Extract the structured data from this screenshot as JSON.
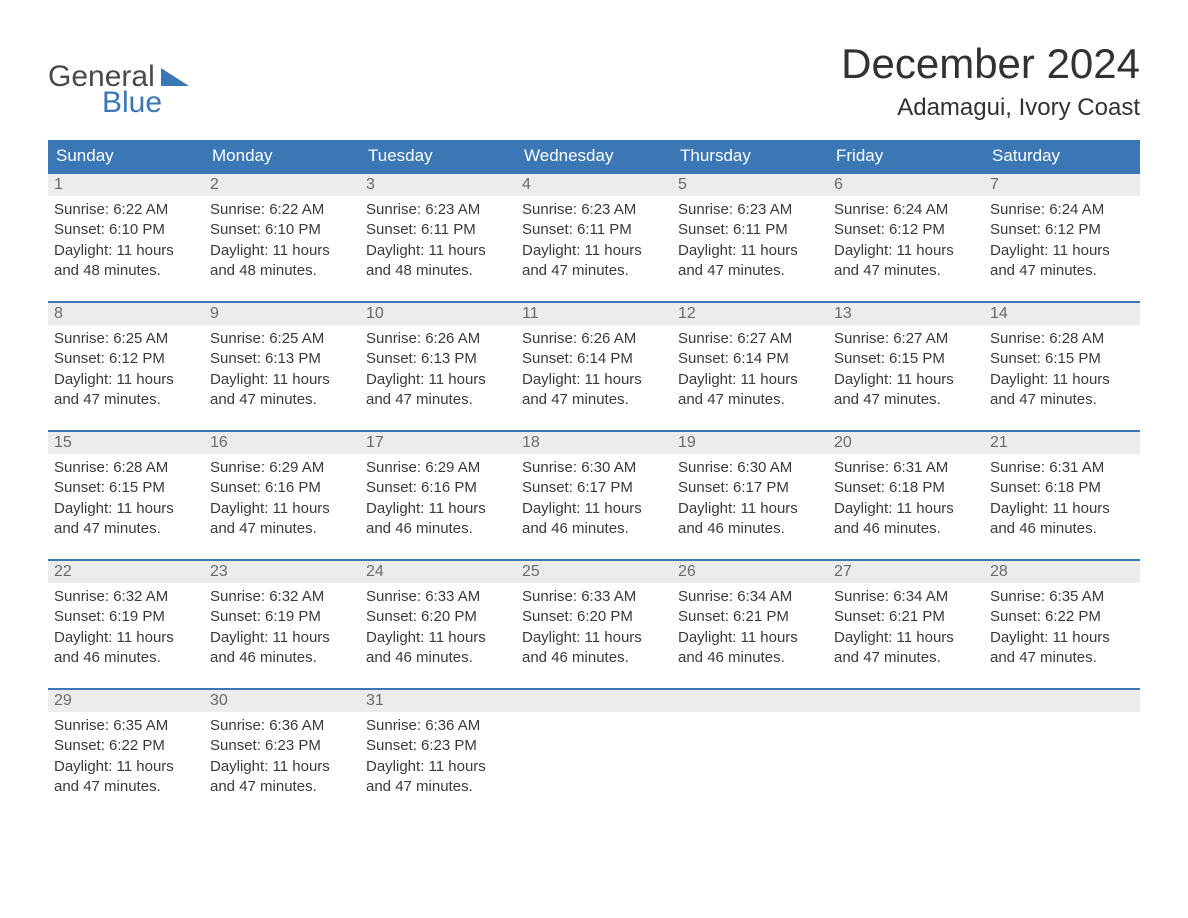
{
  "logo": {
    "word1": "General",
    "word2": "Blue"
  },
  "header": {
    "month_title": "December 2024",
    "location": "Adamagui, Ivory Coast"
  },
  "colors": {
    "brand_blue": "#3b76b5",
    "header_bg": "#3b76b5",
    "header_text": "#ffffff",
    "daynum_bg": "#ececec",
    "daynum_text": "#6a6a6a",
    "body_text": "#3a3a3a",
    "rule": "#3b76b5",
    "page_bg": "#ffffff"
  },
  "typography": {
    "month_title_fontsize": 42,
    "location_fontsize": 24,
    "weekday_fontsize": 17,
    "daynum_fontsize": 16,
    "body_fontsize": 15,
    "logo_fontsize": 30
  },
  "weekdays": [
    "Sunday",
    "Monday",
    "Tuesday",
    "Wednesday",
    "Thursday",
    "Friday",
    "Saturday"
  ],
  "weeks": [
    [
      {
        "n": "1",
        "sr": "Sunrise: 6:22 AM",
        "ss": "Sunset: 6:10 PM",
        "d1": "Daylight: 11 hours",
        "d2": "and 48 minutes."
      },
      {
        "n": "2",
        "sr": "Sunrise: 6:22 AM",
        "ss": "Sunset: 6:10 PM",
        "d1": "Daylight: 11 hours",
        "d2": "and 48 minutes."
      },
      {
        "n": "3",
        "sr": "Sunrise: 6:23 AM",
        "ss": "Sunset: 6:11 PM",
        "d1": "Daylight: 11 hours",
        "d2": "and 48 minutes."
      },
      {
        "n": "4",
        "sr": "Sunrise: 6:23 AM",
        "ss": "Sunset: 6:11 PM",
        "d1": "Daylight: 11 hours",
        "d2": "and 47 minutes."
      },
      {
        "n": "5",
        "sr": "Sunrise: 6:23 AM",
        "ss": "Sunset: 6:11 PM",
        "d1": "Daylight: 11 hours",
        "d2": "and 47 minutes."
      },
      {
        "n": "6",
        "sr": "Sunrise: 6:24 AM",
        "ss": "Sunset: 6:12 PM",
        "d1": "Daylight: 11 hours",
        "d2": "and 47 minutes."
      },
      {
        "n": "7",
        "sr": "Sunrise: 6:24 AM",
        "ss": "Sunset: 6:12 PM",
        "d1": "Daylight: 11 hours",
        "d2": "and 47 minutes."
      }
    ],
    [
      {
        "n": "8",
        "sr": "Sunrise: 6:25 AM",
        "ss": "Sunset: 6:12 PM",
        "d1": "Daylight: 11 hours",
        "d2": "and 47 minutes."
      },
      {
        "n": "9",
        "sr": "Sunrise: 6:25 AM",
        "ss": "Sunset: 6:13 PM",
        "d1": "Daylight: 11 hours",
        "d2": "and 47 minutes."
      },
      {
        "n": "10",
        "sr": "Sunrise: 6:26 AM",
        "ss": "Sunset: 6:13 PM",
        "d1": "Daylight: 11 hours",
        "d2": "and 47 minutes."
      },
      {
        "n": "11",
        "sr": "Sunrise: 6:26 AM",
        "ss": "Sunset: 6:14 PM",
        "d1": "Daylight: 11 hours",
        "d2": "and 47 minutes."
      },
      {
        "n": "12",
        "sr": "Sunrise: 6:27 AM",
        "ss": "Sunset: 6:14 PM",
        "d1": "Daylight: 11 hours",
        "d2": "and 47 minutes."
      },
      {
        "n": "13",
        "sr": "Sunrise: 6:27 AM",
        "ss": "Sunset: 6:15 PM",
        "d1": "Daylight: 11 hours",
        "d2": "and 47 minutes."
      },
      {
        "n": "14",
        "sr": "Sunrise: 6:28 AM",
        "ss": "Sunset: 6:15 PM",
        "d1": "Daylight: 11 hours",
        "d2": "and 47 minutes."
      }
    ],
    [
      {
        "n": "15",
        "sr": "Sunrise: 6:28 AM",
        "ss": "Sunset: 6:15 PM",
        "d1": "Daylight: 11 hours",
        "d2": "and 47 minutes."
      },
      {
        "n": "16",
        "sr": "Sunrise: 6:29 AM",
        "ss": "Sunset: 6:16 PM",
        "d1": "Daylight: 11 hours",
        "d2": "and 47 minutes."
      },
      {
        "n": "17",
        "sr": "Sunrise: 6:29 AM",
        "ss": "Sunset: 6:16 PM",
        "d1": "Daylight: 11 hours",
        "d2": "and 46 minutes."
      },
      {
        "n": "18",
        "sr": "Sunrise: 6:30 AM",
        "ss": "Sunset: 6:17 PM",
        "d1": "Daylight: 11 hours",
        "d2": "and 46 minutes."
      },
      {
        "n": "19",
        "sr": "Sunrise: 6:30 AM",
        "ss": "Sunset: 6:17 PM",
        "d1": "Daylight: 11 hours",
        "d2": "and 46 minutes."
      },
      {
        "n": "20",
        "sr": "Sunrise: 6:31 AM",
        "ss": "Sunset: 6:18 PM",
        "d1": "Daylight: 11 hours",
        "d2": "and 46 minutes."
      },
      {
        "n": "21",
        "sr": "Sunrise: 6:31 AM",
        "ss": "Sunset: 6:18 PM",
        "d1": "Daylight: 11 hours",
        "d2": "and 46 minutes."
      }
    ],
    [
      {
        "n": "22",
        "sr": "Sunrise: 6:32 AM",
        "ss": "Sunset: 6:19 PM",
        "d1": "Daylight: 11 hours",
        "d2": "and 46 minutes."
      },
      {
        "n": "23",
        "sr": "Sunrise: 6:32 AM",
        "ss": "Sunset: 6:19 PM",
        "d1": "Daylight: 11 hours",
        "d2": "and 46 minutes."
      },
      {
        "n": "24",
        "sr": "Sunrise: 6:33 AM",
        "ss": "Sunset: 6:20 PM",
        "d1": "Daylight: 11 hours",
        "d2": "and 46 minutes."
      },
      {
        "n": "25",
        "sr": "Sunrise: 6:33 AM",
        "ss": "Sunset: 6:20 PM",
        "d1": "Daylight: 11 hours",
        "d2": "and 46 minutes."
      },
      {
        "n": "26",
        "sr": "Sunrise: 6:34 AM",
        "ss": "Sunset: 6:21 PM",
        "d1": "Daylight: 11 hours",
        "d2": "and 46 minutes."
      },
      {
        "n": "27",
        "sr": "Sunrise: 6:34 AM",
        "ss": "Sunset: 6:21 PM",
        "d1": "Daylight: 11 hours",
        "d2": "and 47 minutes."
      },
      {
        "n": "28",
        "sr": "Sunrise: 6:35 AM",
        "ss": "Sunset: 6:22 PM",
        "d1": "Daylight: 11 hours",
        "d2": "and 47 minutes."
      }
    ],
    [
      {
        "n": "29",
        "sr": "Sunrise: 6:35 AM",
        "ss": "Sunset: 6:22 PM",
        "d1": "Daylight: 11 hours",
        "d2": "and 47 minutes."
      },
      {
        "n": "30",
        "sr": "Sunrise: 6:36 AM",
        "ss": "Sunset: 6:23 PM",
        "d1": "Daylight: 11 hours",
        "d2": "and 47 minutes."
      },
      {
        "n": "31",
        "sr": "Sunrise: 6:36 AM",
        "ss": "Sunset: 6:23 PM",
        "d1": "Daylight: 11 hours",
        "d2": "and 47 minutes."
      },
      {
        "empty": true
      },
      {
        "empty": true
      },
      {
        "empty": true
      },
      {
        "empty": true
      }
    ]
  ]
}
